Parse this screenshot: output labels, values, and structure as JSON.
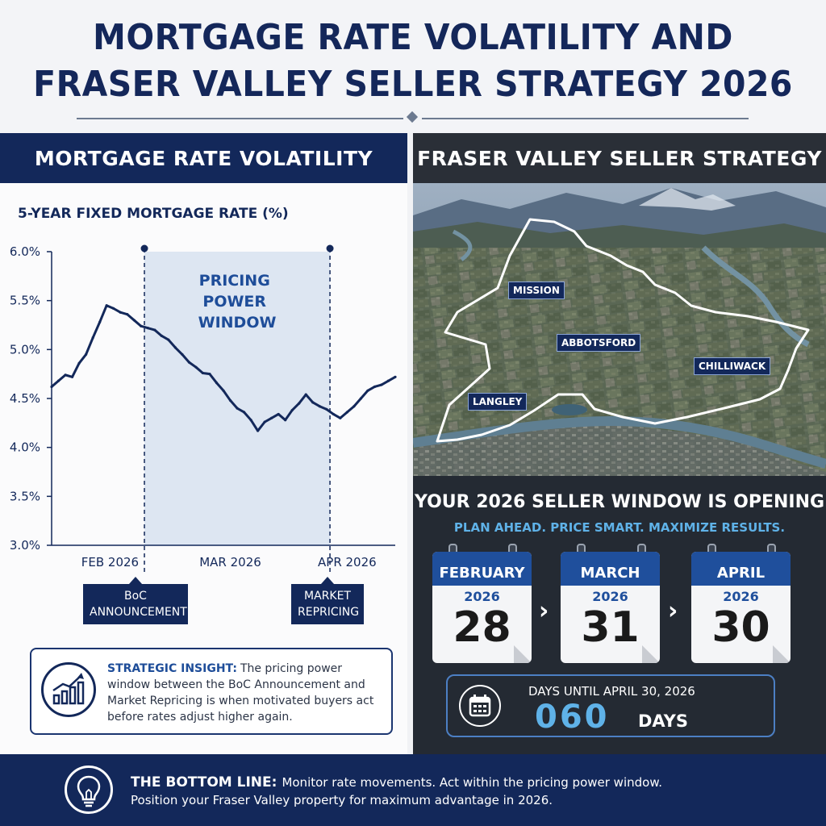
{
  "title": {
    "line1": "MORTGAGE RATE VOLATILITY AND",
    "line2": "FRASER VALLEY SELLER STRATEGY 2026"
  },
  "left_panel": {
    "heading": "MORTGAGE RATE VOLATILITY",
    "chart_subtitle": "5-YEAR FIXED MORTGAGE RATE (%)",
    "window_label": [
      "PRICING",
      "POWER",
      "WINDOW"
    ],
    "callouts": {
      "boc": [
        "BoC",
        "ANNOUNCEMENT"
      ],
      "market": [
        "MARKET",
        "REPRICING"
      ]
    },
    "insight": {
      "heading": "STRATEGIC INSIGHT:",
      "text": "The pricing power window between the BoC Announcement and Market Repricing is when motivated buyers act before rates adjust higher again.",
      "icon": "growth-chart-icon"
    }
  },
  "chart_data": {
    "type": "line",
    "title": "5-YEAR FIXED MORTGAGE RATE (%)",
    "xlabel": "",
    "ylabel": "",
    "ylim": [
      3.0,
      6.0
    ],
    "yticks": [
      "6.0%",
      "5.5%",
      "5.0%",
      "4.5%",
      "4.0%",
      "3.5%",
      "3.0%"
    ],
    "ytick_values": [
      6.0,
      5.5,
      5.0,
      4.5,
      4.0,
      3.5,
      3.0
    ],
    "xticks": [
      "FEB 2026",
      "MAR 2026",
      "APR 2026"
    ],
    "x_range": [
      0,
      100
    ],
    "xtick_positions": [
      17,
      52,
      86
    ],
    "grid": false,
    "legend": "none",
    "line_color": "#13285a",
    "window_color": "#dde6f2",
    "highlight_window": {
      "start": 27,
      "end": 81
    },
    "series": [
      {
        "x": [
          0,
          2,
          4,
          6,
          8,
          10,
          12,
          14,
          16,
          18,
          20,
          22,
          24,
          26,
          28,
          30,
          32,
          34,
          36,
          38,
          40,
          42,
          44,
          46,
          48,
          50,
          52,
          54,
          56,
          58,
          60,
          62,
          64,
          66,
          68,
          70,
          72,
          74,
          76,
          78,
          80,
          82,
          84,
          86,
          88,
          90,
          92,
          94,
          96,
          98,
          100
        ],
        "values": [
          4.62,
          4.68,
          4.74,
          4.72,
          4.86,
          4.95,
          5.12,
          5.28,
          5.45,
          5.42,
          5.38,
          5.36,
          5.3,
          5.24,
          5.22,
          5.2,
          5.14,
          5.1,
          5.02,
          4.95,
          4.87,
          4.82,
          4.76,
          4.75,
          4.66,
          4.58,
          4.48,
          4.4,
          4.36,
          4.28,
          4.17,
          4.26,
          4.3,
          4.34,
          4.28,
          4.38,
          4.45,
          4.54,
          4.46,
          4.42,
          4.39,
          4.34,
          4.3,
          4.36,
          4.42,
          4.5,
          4.58,
          4.62,
          4.64,
          4.68,
          4.72
        ]
      }
    ]
  },
  "right_panel": {
    "heading": "FRASER VALLEY SELLER STRATEGY",
    "map_labels": [
      "MISSION",
      "ABBOTSFORD",
      "CHILLIWACK",
      "LANGLEY"
    ],
    "window_title": "YOUR 2026 SELLER WINDOW IS OPENING",
    "window_subtitle": "PLAN AHEAD. PRICE SMART. MAXIMIZE RESULTS.",
    "calendars": [
      {
        "month": "FEBRUARY",
        "year": "2026",
        "day": "28"
      },
      {
        "month": "MARCH",
        "year": "2026",
        "day": "31"
      },
      {
        "month": "APRIL",
        "year": "2026",
        "day": "30"
      }
    ],
    "countdown": {
      "label": "DAYS UNTIL APRIL 30, 2026",
      "number": "060",
      "unit": "DAYS",
      "icon": "calendar-icon"
    }
  },
  "footer": {
    "heading": "THE BOTTOM LINE:",
    "line1": "Monitor rate movements. Act within the pricing power window.",
    "line2": "Position your Fraser Valley property for maximum advantage in 2026.",
    "icon": "lightbulb-icon"
  },
  "colors": {
    "navy": "#13285a",
    "accent_blue": "#1f4f9c",
    "light_blue": "#5fb2e8",
    "dark_panel": "#242a33"
  }
}
